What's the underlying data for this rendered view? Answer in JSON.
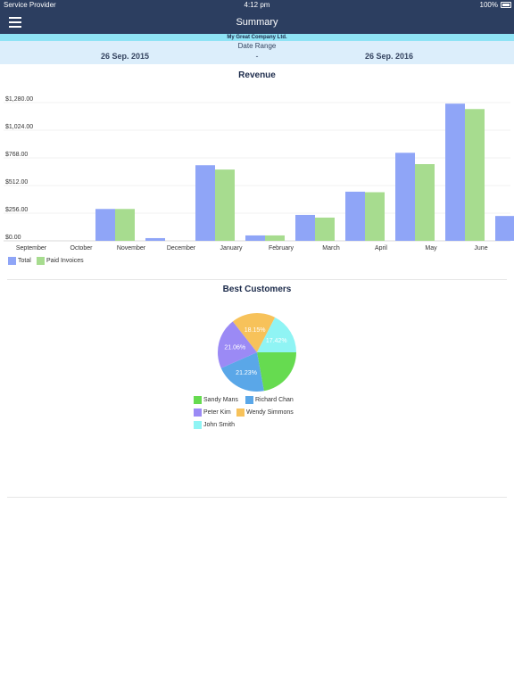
{
  "status_bar": {
    "carrier": "Service Provider",
    "time": "4:12 pm",
    "battery": "100%"
  },
  "nav": {
    "title": "Summary",
    "menu_icon": "hamburger-menu-icon"
  },
  "company": {
    "name": "My Great Company Ltd."
  },
  "date_range": {
    "label": "Date Range",
    "from": "26 Sep. 2015",
    "separator": "-",
    "to": "26 Sep. 2016"
  },
  "revenue": {
    "title": "Revenue"
  },
  "customers": {
    "title": "Best Customers"
  },
  "colors": {
    "header": "#2c3e60",
    "company_band": "#8fe3f5",
    "range_band": "#dceefb",
    "total": "#8fa5f7",
    "paid": "#a7dc8f"
  },
  "chart_data": [
    {
      "type": "bar",
      "title": "Revenue",
      "categories": [
        "September",
        "October",
        "November",
        "December",
        "January",
        "February",
        "March",
        "April",
        "May",
        "June",
        "Ju"
      ],
      "series": [
        {
          "name": "Total",
          "values": [
            0,
            295,
            25,
            700,
            50,
            240,
            455,
            815,
            1270,
            230,
            0
          ]
        },
        {
          "name": "Paid Invoices",
          "values": [
            0,
            295,
            0,
            660,
            50,
            215,
            450,
            710,
            1220,
            0,
            0
          ]
        }
      ],
      "y_ticks": [
        "$0.00",
        "$256.00",
        "$512.00",
        "$768.00",
        "$1,024.00",
        "$1,280.00"
      ],
      "ylim": [
        0,
        1280
      ],
      "grid": true,
      "legend": "bottom-left"
    },
    {
      "type": "pie",
      "title": "Best Customers",
      "slices": [
        {
          "label": "Sandy Mans",
          "value": 22.14,
          "text": "",
          "color": "#66db50"
        },
        {
          "label": "Richard Chan",
          "value": 21.23,
          "text": "21.23%",
          "color": "#5aa7e8"
        },
        {
          "label": "Peter Kim",
          "value": 21.06,
          "text": "21.06%",
          "color": "#9b8af5"
        },
        {
          "label": "Wendy Simmons",
          "value": 18.15,
          "text": "18.15%",
          "color": "#f7c25a"
        },
        {
          "label": "John Smith",
          "value": 17.42,
          "text": "17.42%",
          "color": "#8ff4f4"
        }
      ],
      "legend": "bottom"
    }
  ]
}
